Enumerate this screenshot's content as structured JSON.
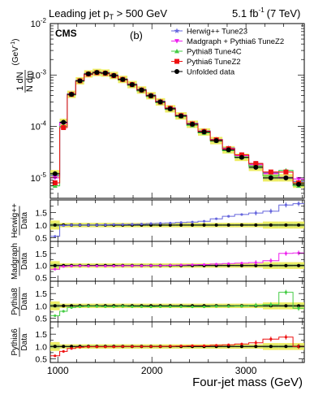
{
  "header": {
    "left_prefix": "Leading jet p",
    "left_sub": "T",
    "left_suffix": " > 500 GeV",
    "lumi_value": "5.1 fb",
    "lumi_exp": "-1",
    "lumi_energy": "(7 TeV)"
  },
  "chart_data": {
    "type": "line",
    "experiment": "CMS",
    "panel_label": "(b)",
    "xlabel": "Four-jet mass (GeV)",
    "xlim": [
      920,
      3620
    ],
    "xticks": [
      1000,
      2000,
      3000
    ],
    "x_bin_edges": [
      920,
      1020,
      1100,
      1190,
      1280,
      1370,
      1460,
      1550,
      1640,
      1740,
      1840,
      1940,
      2040,
      2140,
      2250,
      2370,
      2490,
      2620,
      2750,
      2880,
      3030,
      3180,
      3350,
      3500,
      3620
    ],
    "main": {
      "ylabel_main": "1 dN",
      "ylabel_denom": "N dm",
      "ylabel_unit": "(GeV",
      "ylabel_unit_exp": "-1",
      "ylabel_unit_close": ")",
      "yscale": "log",
      "ylim": [
        4e-06,
        0.01
      ],
      "yticks": [
        {
          "value": 1e-05,
          "base": "10",
          "exp": "-5"
        },
        {
          "value": 0.0001,
          "base": "10",
          "exp": "-4"
        },
        {
          "value": 0.001,
          "base": "10",
          "exp": "-3"
        },
        {
          "value": 0.01,
          "base": "10",
          "exp": "-2"
        }
      ],
      "legend_position": "top-right",
      "series": [
        {
          "name": "Herwig++ Tune23",
          "color": "#6666dd",
          "marker": "star",
          "values": [
            1.1e-05,
            0.00012,
            0.00043,
            0.00078,
            0.00105,
            0.00112,
            0.0011,
            0.00099,
            0.00083,
            0.00066,
            0.00052,
            0.000405,
            0.00031,
            0.00023,
            0.000165,
            0.000115,
            8.2e-05,
            5.6e-05,
            3.8e-05,
            2.8e-05,
            1.9e-05,
            1.25e-05,
            1e-05,
            8.5e-06
          ]
        },
        {
          "name": "Madgraph + Pythia6 TuneZ2",
          "color": "#ee22ee",
          "marker": "triangle-down",
          "values": [
            1e-05,
            0.000115,
            0.00042,
            0.00077,
            0.00102,
            0.0011,
            0.00107,
            0.00096,
            0.00081,
            0.00064,
            0.0005,
            0.00039,
            0.000295,
            0.00022,
            0.000158,
            0.00011,
            7.8e-05,
            5.4e-05,
            3.6e-05,
            2.7e-05,
            1.8e-05,
            1.2e-05,
            1e-05,
            9.5e-06
          ]
        },
        {
          "name": "Pythia8 Tune4C",
          "color": "#44cc44",
          "marker": "triangle-up",
          "values": [
            7e-06,
            0.0001,
            0.00041,
            0.00076,
            0.00103,
            0.0011,
            0.00106,
            0.00095,
            0.0008,
            0.00063,
            0.00049,
            0.00038,
            0.00029,
            0.000215,
            0.000155,
            0.000105,
            7.5e-05,
            5.2e-05,
            3.4e-05,
            2.5e-05,
            1.7e-05,
            1.1e-05,
            1.4e-05,
            7e-06
          ]
        },
        {
          "name": "Pythia6 TuneZ2",
          "color": "#ee1111",
          "marker": "square",
          "values": [
            8e-06,
            9.5e-05,
            0.00042,
            0.00077,
            0.00104,
            0.00111,
            0.00108,
            0.00097,
            0.00082,
            0.00065,
            0.00051,
            0.000395,
            0.0003,
            0.000225,
            0.000162,
            0.000112,
            8e-05,
            5.5e-05,
            3.7e-05,
            2.8e-05,
            1.9e-05,
            1.3e-05,
            1.3e-05,
            8e-06
          ]
        },
        {
          "name": "Unfolded data",
          "color": "#000000",
          "marker": "circle",
          "values": [
            1.2e-05,
            0.00012,
            0.00042,
            0.00077,
            0.00105,
            0.00112,
            0.00109,
            0.00098,
            0.00082,
            0.00065,
            0.00051,
            0.000395,
            0.0003,
            0.00022,
            0.00016,
            0.00011,
            7.8e-05,
            5.3e-05,
            3.5e-05,
            2.5e-05,
            1.6e-05,
            1e-05,
            1e-05,
            7.5e-06
          ]
        }
      ]
    },
    "ratios": [
      {
        "label": "Herwig++",
        "denom": "Data",
        "color": "#6666dd",
        "ylim": [
          0.35,
          2.0
        ],
        "yticks": [
          {
            "value": 0.5,
            "label": "0.5"
          },
          {
            "value": 1.0,
            "label": "1.0"
          },
          {
            "value": 1.5,
            "label": "1.5"
          }
        ],
        "values": [
          0.55,
          0.98,
          1.0,
          1.0,
          1.0,
          1.0,
          1.01,
          1.02,
          1.02,
          1.03,
          1.04,
          1.06,
          1.07,
          1.08,
          1.1,
          1.12,
          1.15,
          1.25,
          1.35,
          1.42,
          1.48,
          1.55,
          1.8,
          1.85
        ]
      },
      {
        "label": "Madgraph",
        "denom": "Data",
        "color": "#ee22ee",
        "ylim": [
          0.35,
          2.0
        ],
        "yticks": [
          {
            "value": 0.5,
            "label": "0.5"
          },
          {
            "value": 1.0,
            "label": "1.0"
          },
          {
            "value": 1.5,
            "label": "1.5"
          }
        ],
        "values": [
          0.85,
          0.96,
          0.98,
          0.99,
          0.98,
          0.98,
          0.98,
          0.98,
          0.99,
          0.99,
          0.99,
          1.0,
          1.0,
          1.01,
          1.02,
          1.03,
          1.04,
          1.06,
          1.08,
          1.1,
          1.12,
          1.2,
          1.5,
          1.52
        ]
      },
      {
        "label": "Pythia8",
        "denom": "Data",
        "color": "#44cc44",
        "ylim": [
          0.35,
          2.0
        ],
        "yticks": [
          {
            "value": 0.5,
            "label": "0.5"
          },
          {
            "value": 1.0,
            "label": "1.0"
          },
          {
            "value": 1.5,
            "label": "1.5"
          }
        ],
        "values": [
          0.6,
          0.78,
          0.93,
          0.97,
          0.98,
          0.98,
          0.97,
          0.97,
          0.98,
          0.97,
          0.97,
          0.96,
          0.97,
          0.97,
          0.97,
          0.96,
          0.96,
          0.98,
          0.98,
          0.99,
          1.02,
          1.05,
          1.55,
          0.9
        ]
      },
      {
        "label": "Pythia6",
        "denom": "Data",
        "color": "#ee1111",
        "ylim": [
          0.35,
          2.0
        ],
        "yticks": [
          {
            "value": 0.5,
            "label": "0.5"
          },
          {
            "value": 1.0,
            "label": "1.0"
          },
          {
            "value": 1.5,
            "label": "1.5"
          }
        ],
        "values": [
          0.62,
          0.8,
          0.92,
          0.97,
          0.99,
          0.99,
          0.99,
          0.99,
          1.0,
          1.0,
          1.0,
          1.0,
          1.0,
          1.01,
          1.02,
          1.03,
          1.03,
          1.05,
          1.07,
          1.1,
          1.15,
          1.3,
          1.38,
          1.0
        ]
      }
    ]
  }
}
